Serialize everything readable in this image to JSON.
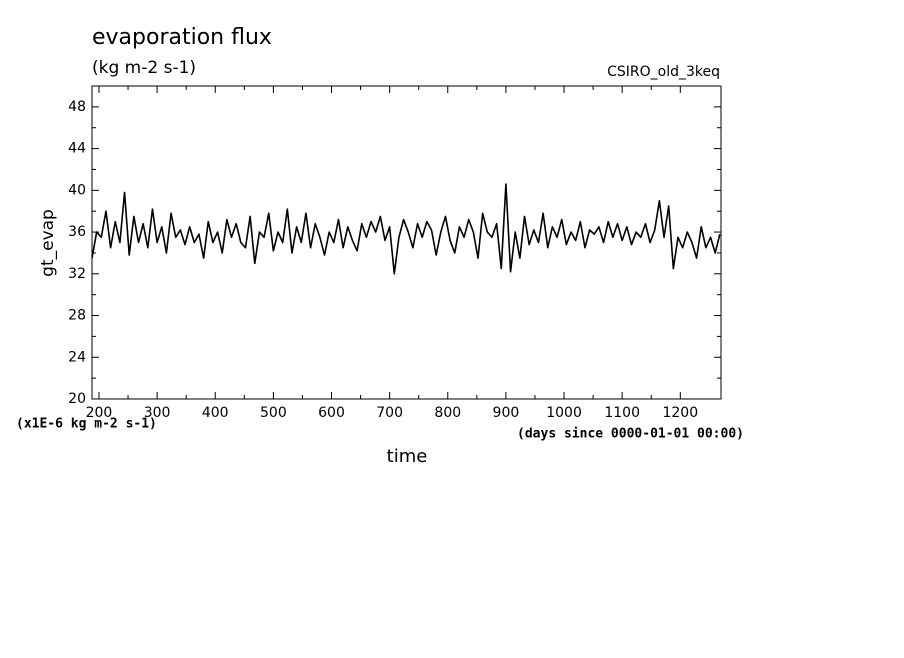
{
  "chart_data": {
    "type": "line",
    "title": "evaporation flux",
    "subtitle": "(kg m-2 s-1)",
    "annotation": "CSIRO_old_3keq",
    "y_label": "gt_evap",
    "x_label": "time",
    "y_unit_note": "(x1E-6 kg m-2 s-1)",
    "x_unit_note": "(days since 0000-01-01 00:00)",
    "xlim": [
      188,
      1270
    ],
    "ylim": [
      20,
      50
    ],
    "xticks": [
      200,
      300,
      400,
      500,
      600,
      700,
      800,
      900,
      1000,
      1100,
      1200
    ],
    "yticks": [
      20,
      24,
      28,
      32,
      36,
      40,
      44,
      48
    ],
    "x": [
      188,
      196,
      204,
      212,
      220,
      228,
      236,
      244,
      252,
      260,
      268,
      276,
      284,
      292,
      300,
      308,
      316,
      324,
      332,
      340,
      348,
      356,
      364,
      372,
      380,
      388,
      396,
      404,
      412,
      420,
      428,
      436,
      444,
      452,
      460,
      468,
      476,
      484,
      492,
      500,
      508,
      516,
      524,
      532,
      540,
      548,
      556,
      564,
      572,
      580,
      588,
      596,
      604,
      612,
      620,
      628,
      636,
      644,
      652,
      660,
      668,
      676,
      684,
      692,
      700,
      708,
      716,
      724,
      732,
      740,
      748,
      756,
      764,
      772,
      780,
      788,
      796,
      804,
      812,
      820,
      828,
      836,
      844,
      852,
      860,
      868,
      876,
      884,
      892,
      900,
      908,
      916,
      924,
      932,
      940,
      948,
      956,
      964,
      972,
      980,
      988,
      996,
      1004,
      1012,
      1020,
      1028,
      1036,
      1044,
      1052,
      1060,
      1068,
      1076,
      1084,
      1092,
      1100,
      1108,
      1116,
      1124,
      1132,
      1140,
      1148,
      1156,
      1164,
      1172,
      1180,
      1188,
      1196,
      1204,
      1212,
      1220,
      1228,
      1236,
      1244,
      1252,
      1260,
      1268
    ],
    "series": [
      {
        "name": "gt_evap",
        "color": "#000000",
        "values": [
          33.5,
          36,
          35.5,
          38,
          34.5,
          37,
          35,
          39.8,
          33.8,
          37.5,
          35,
          36.8,
          34.5,
          38.2,
          35,
          36.5,
          34,
          37.8,
          35.5,
          36.2,
          34.8,
          36.5,
          35,
          35.8,
          33.5,
          37,
          35,
          36,
          34,
          37.2,
          35.5,
          36.8,
          35,
          34.5,
          37.5,
          33,
          36,
          35.5,
          37.8,
          34.2,
          36,
          35,
          38.2,
          34,
          36.5,
          35,
          37.8,
          34.5,
          36.8,
          35.5,
          33.8,
          36,
          35,
          37.2,
          34.5,
          36.5,
          35.2,
          34.2,
          36.8,
          35.5,
          37,
          36,
          37.5,
          35.2,
          36.5,
          32,
          35.5,
          37.2,
          36,
          34.5,
          36.8,
          35.5,
          37,
          36.2,
          33.8,
          36,
          37.5,
          35.2,
          34,
          36.5,
          35.5,
          37.2,
          36,
          33.5,
          37.8,
          36,
          35.5,
          36.8,
          32.5,
          40.6,
          32.2,
          36,
          33.5,
          37.5,
          34.8,
          36.2,
          35,
          37.8,
          34.5,
          36.5,
          35.5,
          37.2,
          34.8,
          36,
          35.2,
          37,
          34.5,
          36.2,
          35.8,
          36.5,
          35,
          37,
          35.5,
          36.8,
          35.2,
          36.5,
          34.8,
          36,
          35.5,
          36.8,
          35,
          36.2,
          39,
          35.5,
          38.5,
          32.5,
          35.5,
          34.5,
          36,
          35,
          33.5,
          36.5,
          34.5,
          35.5,
          34,
          35.8
        ]
      }
    ]
  }
}
